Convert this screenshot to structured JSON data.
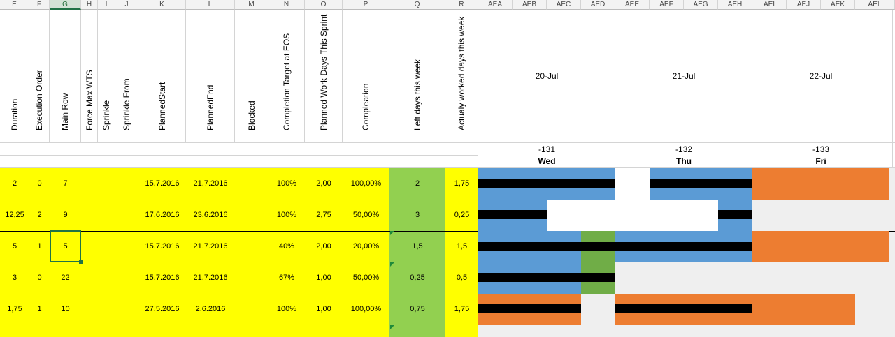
{
  "columns": [
    {
      "letter": "E",
      "header": "Duration"
    },
    {
      "letter": "F",
      "header": "Execution Order"
    },
    {
      "letter": "G",
      "header": "Main Row"
    },
    {
      "letter": "H",
      "header": "Force Max WTS"
    },
    {
      "letter": "I",
      "header": "Sprinkle"
    },
    {
      "letter": "J",
      "header": "Sprinkle From"
    },
    {
      "letter": "K",
      "header": "PlannedStart"
    },
    {
      "letter": "L",
      "header": "PlannedEnd"
    },
    {
      "letter": "M",
      "header": "Blocked"
    },
    {
      "letter": "N",
      "header": "Completion Target at EOS"
    },
    {
      "letter": "O",
      "header": "Planned Work Days This Sprint"
    },
    {
      "letter": "P",
      "header": "Compleation"
    },
    {
      "letter": "Q",
      "header": "Left days this week"
    },
    {
      "letter": "R",
      "header": "Actualy worked days this week"
    }
  ],
  "gantt_columns": [
    "AEA",
    "AEB",
    "AEC",
    "AED",
    "AEE",
    "AEF",
    "AEG",
    "AEH",
    "AEI",
    "AEJ",
    "AEK",
    "AEL"
  ],
  "days": [
    {
      "date": "20-Jul",
      "num": "-131",
      "day": "Wed"
    },
    {
      "date": "21-Jul",
      "num": "-132",
      "day": "Thu"
    },
    {
      "date": "22-Jul",
      "num": "-133",
      "day": "Fri"
    }
  ],
  "rows": [
    {
      "duration": "2",
      "order": "0",
      "main_row": "7",
      "start": "15.7.2016",
      "end": "21.7.2016",
      "target": "100%",
      "planned_days": "2,00",
      "completion": "100,00%",
      "left_days": "2",
      "worked_days": "1,75"
    },
    {
      "duration": "12,25",
      "order": "2",
      "main_row": "9",
      "start": "17.6.2016",
      "end": "23.6.2016",
      "target": "100%",
      "planned_days": "2,75",
      "completion": "50,00%",
      "left_days": "3",
      "worked_days": "0,25"
    },
    {
      "duration": "5",
      "order": "1",
      "main_row": "5",
      "start": "15.7.2016",
      "end": "21.7.2016",
      "target": "40%",
      "planned_days": "2,00",
      "completion": "20,00%",
      "left_days": "1,5",
      "worked_days": "1,5"
    },
    {
      "duration": "3",
      "order": "0",
      "main_row": "22",
      "start": "15.7.2016",
      "end": "21.7.2016",
      "target": "67%",
      "planned_days": "1,00",
      "completion": "50,00%",
      "left_days": "0,25",
      "worked_days": "0,5"
    },
    {
      "duration": "1,75",
      "order": "1",
      "main_row": "10",
      "start": "27.5.2016",
      "end": "2.6.2016",
      "target": "100%",
      "planned_days": "1,00",
      "completion": "100,00%",
      "left_days": "0,75",
      "worked_days": "1,75"
    }
  ],
  "colors": {
    "yellow": "#ffff00",
    "green": "#92d050",
    "blue": "#5b9bd5",
    "orange": "#ed7d31",
    "dark_green": "#70ad47",
    "black": "#000000",
    "gray": "#efefef"
  }
}
